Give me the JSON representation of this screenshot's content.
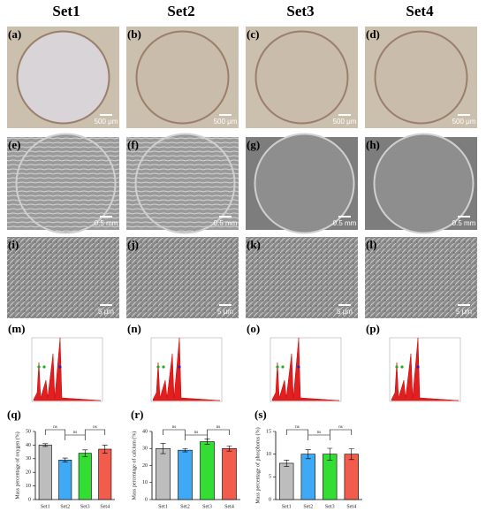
{
  "columns": [
    "Set1",
    "Set2",
    "Set3",
    "Set4"
  ],
  "rows": [
    {
      "labels": [
        "(a)",
        "(b)",
        "(c)",
        "(d)"
      ],
      "scale_bar": "500 μm"
    },
    {
      "labels": [
        "(e)",
        "(f)",
        "(g)",
        "(h)"
      ],
      "scale_bar": "0.5 mm"
    },
    {
      "labels": [
        "(i)",
        "(j)",
        "(k)",
        "(l)"
      ],
      "scale_bar": "5 μm"
    },
    {
      "labels": [
        "(m)",
        "(n)",
        "(o)",
        "(p)"
      ]
    }
  ],
  "chart_data": [
    {
      "type": "bar",
      "label": "(q)",
      "ylabel": "Mass percentage of oxygen (%)",
      "categories": [
        "Set1",
        "Set2",
        "Set3",
        "Set4"
      ],
      "values": [
        40,
        29,
        34,
        37
      ],
      "errors": [
        1,
        1.5,
        2.5,
        3
      ],
      "colors": [
        "#bdbdbd",
        "#3fa9f5",
        "#33dd33",
        "#f25c4c"
      ],
      "ylim": [
        0,
        50
      ],
      "yticks": [
        0,
        10,
        20,
        30,
        40,
        50
      ],
      "annotations": [
        "ns",
        "ns",
        "ns"
      ]
    },
    {
      "type": "bar",
      "label": "(r)",
      "ylabel": "Mass percentage of calcium (%)",
      "categories": [
        "Set1",
        "Set2",
        "Set3",
        "Set4"
      ],
      "values": [
        30,
        29,
        34,
        30
      ],
      "errors": [
        3,
        1,
        1.5,
        1.5
      ],
      "colors": [
        "#bdbdbd",
        "#3fa9f5",
        "#33dd33",
        "#f25c4c"
      ],
      "ylim": [
        0,
        40
      ],
      "yticks": [
        0,
        10,
        20,
        30,
        40
      ],
      "annotations": [
        "ns",
        "ns",
        "ns"
      ]
    },
    {
      "type": "bar",
      "label": "(s)",
      "ylabel": "Mass percentage of phosphorus (%)",
      "categories": [
        "Set1",
        "Set2",
        "Set3",
        "Set4"
      ],
      "values": [
        8,
        10,
        10,
        10
      ],
      "errors": [
        0.7,
        1,
        1.3,
        1.2
      ],
      "colors": [
        "#bdbdbd",
        "#3fa9f5",
        "#33dd33",
        "#f25c4c"
      ],
      "ylim": [
        0,
        15
      ],
      "yticks": [
        0,
        5,
        10,
        15
      ],
      "annotations": [
        "ns",
        "ns",
        "ns"
      ]
    }
  ]
}
